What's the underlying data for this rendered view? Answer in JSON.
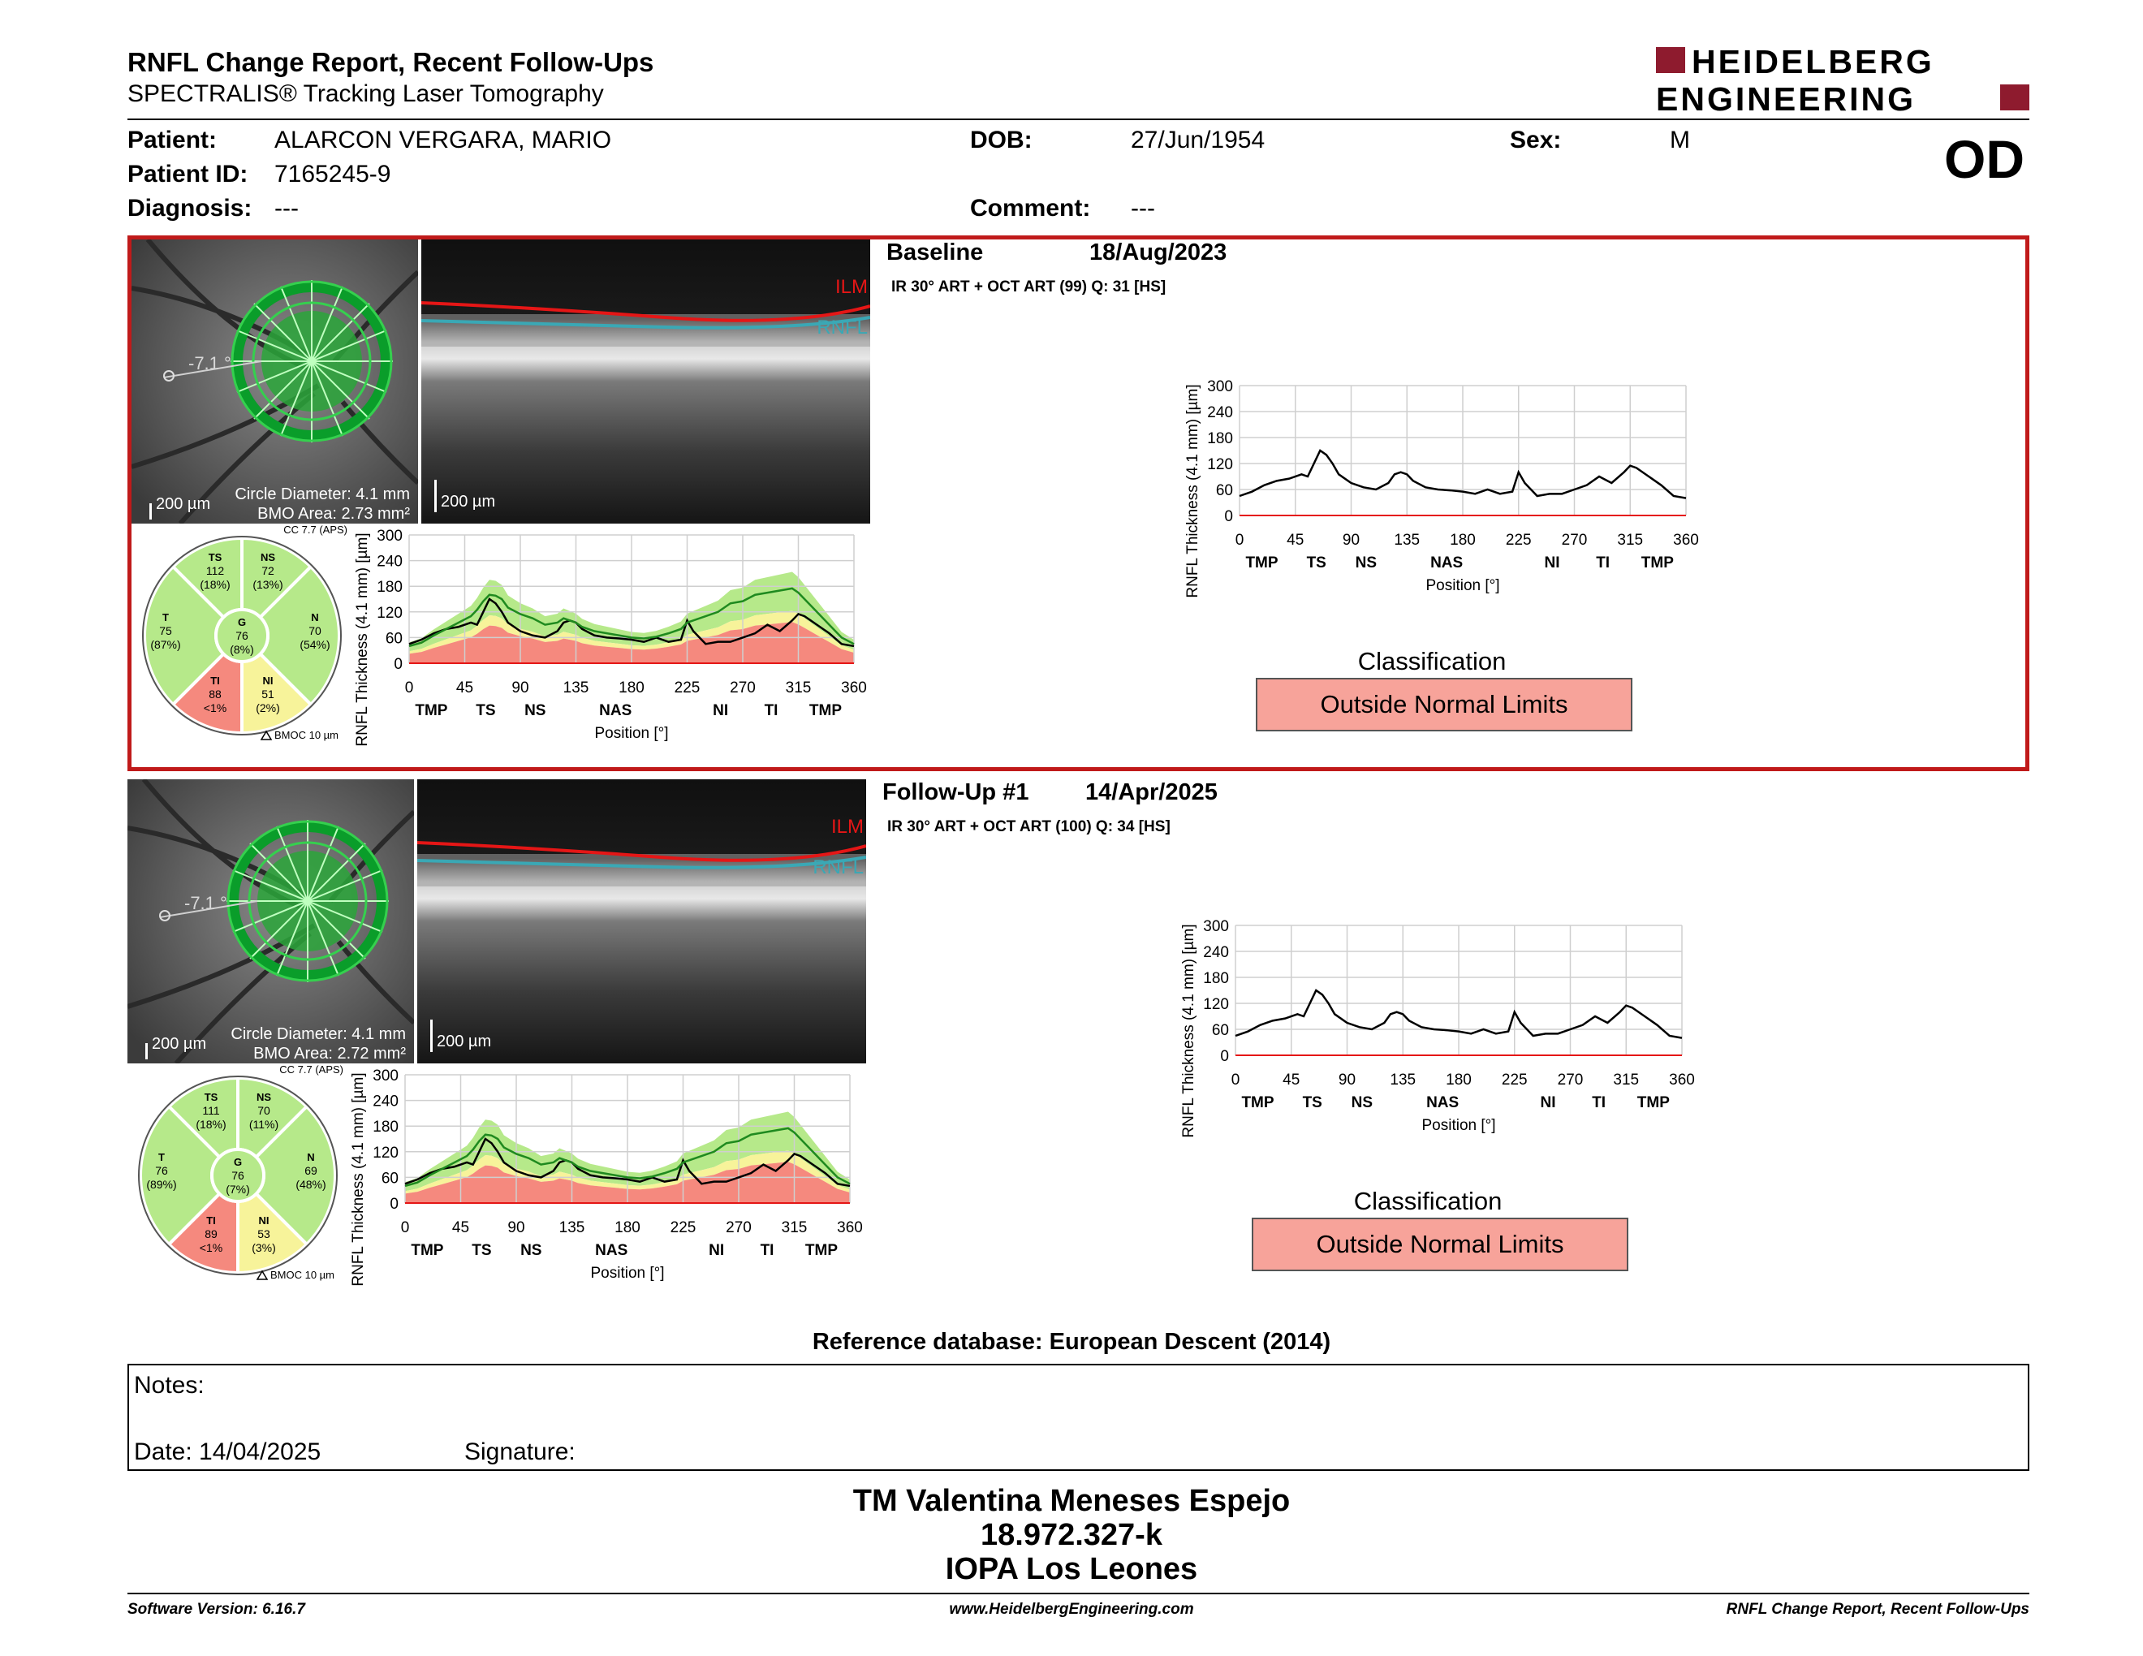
{
  "header": {
    "title": "RNFL Change Report, Recent Follow-Ups",
    "subtitle": "SPECTRALIS® Tracking Laser Tomography",
    "logo_line1": "HEIDELBERG",
    "logo_line2": "ENGINEERING",
    "eye": "OD"
  },
  "patient": {
    "name_label": "Patient:",
    "name": "ALARCON VERGARA, MARIO",
    "id_label": "Patient ID:",
    "id": "7165245-9",
    "diagnosis_label": "Diagnosis:",
    "diagnosis": "---",
    "dob_label": "DOB:",
    "dob": "27/Jun/1954",
    "comment_label": "Comment:",
    "comment": "---",
    "sex_label": "Sex:",
    "sex": "M"
  },
  "exams": [
    {
      "label": "Baseline",
      "date": "18/Aug/2023",
      "acquisition": "IR 30° ART + OCT ART (99) Q: 31 [HS]",
      "slo": {
        "scale": "200 µm",
        "circle": "Circle Diameter: 4.1 mm",
        "bmo": "BMO Area: 2.73 mm²",
        "angle": "-7.1 °"
      },
      "bscan": {
        "scale": "200 µm",
        "ilm": "ILM",
        "rnfl": "RNFL"
      },
      "sectors": {
        "cc": "CC 7.7 (APS)",
        "bmoc": "BMOC 10 µm",
        "TS": {
          "label": "TS",
          "value": "112",
          "pct": "(18%)"
        },
        "NS": {
          "label": "NS",
          "value": "72",
          "pct": "(13%)"
        },
        "T": {
          "label": "T",
          "value": "75",
          "pct": "(87%)"
        },
        "G": {
          "label": "G",
          "value": "76",
          "pct": "(8%)"
        },
        "N": {
          "label": "N",
          "value": "70",
          "pct": "(54%)"
        },
        "TI": {
          "label": "TI",
          "value": "88",
          "pct": "<1%"
        },
        "NI": {
          "label": "NI",
          "value": "51",
          "pct": "(2%)"
        }
      },
      "classification_title": "Classification",
      "classification": "Outside Normal Limits"
    },
    {
      "label": "Follow-Up #1",
      "date": "14/Apr/2025",
      "acquisition": "IR 30° ART + OCT ART (100) Q: 34 [HS]",
      "slo": {
        "scale": "200 µm",
        "circle": "Circle Diameter: 4.1 mm",
        "bmo": "BMO Area: 2.72 mm²",
        "angle": "-7.1 °"
      },
      "bscan": {
        "scale": "200 µm",
        "ilm": "ILM",
        "rnfl": "RNFL"
      },
      "sectors": {
        "cc": "CC 7.7 (APS)",
        "bmoc": "BMOC 10 µm",
        "TS": {
          "label": "TS",
          "value": "111",
          "pct": "(18%)"
        },
        "NS": {
          "label": "NS",
          "value": "70",
          "pct": "(11%)"
        },
        "T": {
          "label": "T",
          "value": "76",
          "pct": "(89%)"
        },
        "G": {
          "label": "G",
          "value": "76",
          "pct": "(7%)"
        },
        "N": {
          "label": "N",
          "value": "69",
          "pct": "(48%)"
        },
        "TI": {
          "label": "TI",
          "value": "89",
          "pct": "<1%"
        },
        "NI": {
          "label": "NI",
          "value": "53",
          "pct": "(3%)"
        }
      },
      "classification_title": "Classification",
      "classification": "Outside Normal Limits"
    }
  ],
  "colors": {
    "normal": "#b6e98a",
    "borderline": "#f7f39a",
    "outside": "#f5897e",
    "frame": "#c01a1a"
  },
  "chart_data": [
    {
      "type": "line",
      "ylabel": "RNFL Thickness (4.1 mm) [µm]",
      "xlabel": "Position [°]",
      "ylim": [
        0,
        300
      ],
      "xlim": [
        0,
        360
      ],
      "yticks": [
        0,
        60,
        120,
        180,
        240,
        300
      ],
      "xticks": [
        0,
        45,
        90,
        135,
        180,
        225,
        270,
        315,
        360
      ],
      "sector_labels": [
        "TMP",
        "TS",
        "NS",
        "NAS",
        "NI",
        "TI",
        "TMP"
      ],
      "sector_positions": [
        18,
        62,
        102,
        167,
        252,
        293,
        337
      ],
      "x": [
        0,
        10,
        20,
        30,
        40,
        50,
        55,
        60,
        65,
        70,
        75,
        80,
        90,
        100,
        110,
        120,
        125,
        130,
        135,
        140,
        150,
        160,
        170,
        180,
        190,
        200,
        210,
        220,
        225,
        230,
        240,
        250,
        260,
        270,
        280,
        290,
        300,
        310,
        315,
        320,
        330,
        340,
        350,
        360
      ],
      "series": [
        {
          "name": "",
          "values": [
            45,
            55,
            70,
            80,
            85,
            95,
            90,
            120,
            150,
            140,
            120,
            95,
            75,
            65,
            60,
            75,
            95,
            100,
            95,
            80,
            65,
            60,
            58,
            55,
            50,
            60,
            50,
            55,
            100,
            75,
            45,
            50,
            50,
            60,
            70,
            90,
            75,
            100,
            115,
            110,
            90,
            70,
            45,
            40
          ]
        },
        {
          "name": "",
          "values": [
            40,
            48,
            65,
            80,
            95,
            110,
            125,
            145,
            160,
            158,
            150,
            130,
            115,
            105,
            90,
            95,
            105,
            100,
            95,
            85,
            75,
            70,
            65,
            60,
            58,
            62,
            70,
            80,
            95,
            100,
            110,
            120,
            140,
            145,
            160,
            165,
            170,
            175,
            165,
            150,
            120,
            90,
            60,
            45
          ]
        }
      ]
    }
  ],
  "reference_db": "Reference database: European Descent (2014)",
  "notes": {
    "label": "Notes:",
    "date": "Date: 14/04/2025",
    "signature": "Signature:"
  },
  "signoff": {
    "name": "TM Valentina Meneses Espejo",
    "id": "18.972.327-k",
    "org": "IOPA Los Leones"
  },
  "footer": {
    "version": "Software Version: 6.16.7",
    "url": "www.HeidelbergEngineering.com",
    "report": "RNFL Change Report, Recent Follow-Ups"
  }
}
